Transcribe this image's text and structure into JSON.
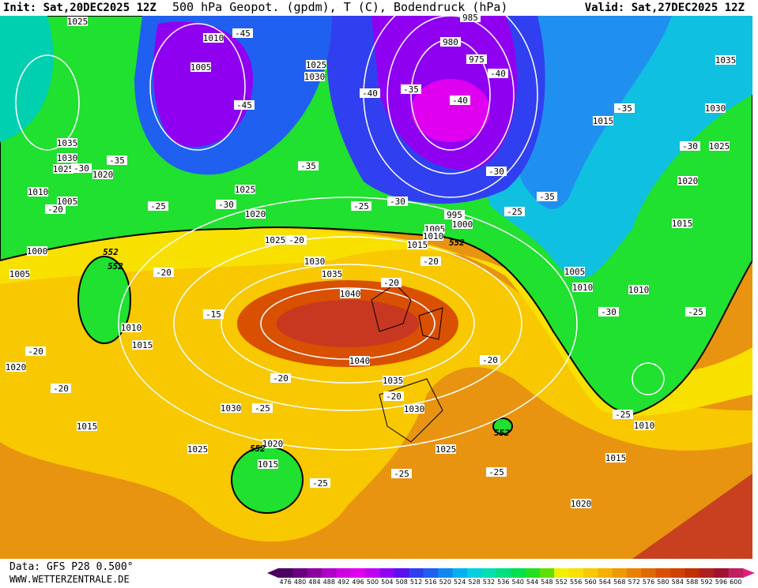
{
  "header": {
    "init": "Init: Sat,20DEC2025 12Z",
    "title": "500 hPa Geopot. (gpdm), T (C), Bodendruck (hPa)",
    "valid": "Valid: Sat,27DEC2025 12Z"
  },
  "footer": {
    "data": "Data: GFS P28 0.500°",
    "site": "WWW.WETTERZENTRALE.DE"
  },
  "colorbar": {
    "labels": [
      476,
      480,
      484,
      488,
      492,
      496,
      500,
      504,
      508,
      512,
      516,
      520,
      524,
      528,
      532,
      536,
      540,
      544,
      548,
      552,
      556,
      560,
      564,
      568,
      572,
      576,
      580,
      584,
      588,
      592,
      596,
      600
    ],
    "colors": [
      "#4b0060",
      "#6a0080",
      "#8a00a0",
      "#b000c8",
      "#d000e0",
      "#e000f0",
      "#c000f0",
      "#9000f0",
      "#5a10f0",
      "#3040f0",
      "#2060f0",
      "#1088f0",
      "#00b0f0",
      "#00d0e0",
      "#00e0b0",
      "#00e080",
      "#00e050",
      "#20e020",
      "#60e000",
      "#f0f000",
      "#f8e000",
      "#f8c800",
      "#f8b000",
      "#f09800",
      "#e88000",
      "#e06800",
      "#d85000",
      "#d04000",
      "#c03000",
      "#b02020",
      "#a01030",
      "#c02060"
    ]
  },
  "map": {
    "pressure_labels": [
      "1025",
      "1010",
      "1005",
      "1025",
      "1030",
      "985",
      "980",
      "975",
      "1035",
      "1030",
      "1015",
      "1025",
      "1020",
      "1015",
      "1035",
      "1030",
      "1025",
      "1020",
      "1010",
      "1005",
      "1025",
      "1020",
      "995",
      "1000",
      "1005",
      "1010",
      "1015",
      "1025",
      "1000",
      "1005",
      "1030",
      "1035",
      "1040",
      "1010",
      "1015",
      "1020",
      "1040",
      "1035",
      "1030",
      "1030",
      "1005",
      "1010",
      "1010",
      "1010",
      "1015",
      "1020",
      "1025",
      "1015",
      "1025",
      "1015",
      "1020"
    ],
    "temperature_labels": [
      "-45",
      "-40",
      "-40",
      "-35",
      "-40",
      "-45",
      "-35",
      "-30",
      "-35",
      "-30",
      "-35",
      "-30",
      "-25",
      "-30",
      "-25",
      "-30",
      "-35",
      "-25",
      "-20",
      "-20",
      "-20",
      "-20",
      "-20",
      "-15",
      "-30",
      "-25",
      "-20",
      "-20",
      "-20",
      "-20",
      "-20",
      "-25",
      "-25",
      "-25",
      "-25",
      "-25"
    ],
    "geopotential_labels": [
      "552",
      "552",
      "552",
      "552",
      "552"
    ]
  }
}
